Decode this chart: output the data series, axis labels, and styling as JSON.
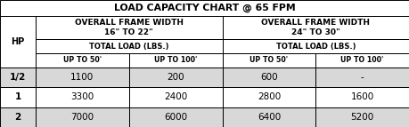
{
  "title": "LOAD CAPACITY CHART @ 65 FPM",
  "header1_left": "OVERALL FRAME WIDTH\n16\" TO 22\"",
  "header1_right": "OVERALL FRAME WIDTH\n24\" TO 30\"",
  "header2": "TOTAL LOAD (LBS.)",
  "header3_cols": [
    "HP",
    "UP TO 50'",
    "UP TO 100'",
    "UP TO 50'",
    "UP TO 100'"
  ],
  "rows": [
    [
      "1/2",
      "1100",
      "200",
      "600",
      "-"
    ],
    [
      "1",
      "3300",
      "2400",
      "2800",
      "1600"
    ],
    [
      "2",
      "7000",
      "6000",
      "6400",
      "5200"
    ]
  ],
  "border_color": "#000000",
  "bg_white": "#ffffff",
  "bg_gray": "#d8d8d8",
  "text_color": "#000000",
  "title_fontsize": 7.8,
  "header_fontsize": 6.5,
  "subheader_fontsize": 6.0,
  "data_fontsize": 7.5,
  "hp_fontsize": 7.0,
  "fig_width": 4.59,
  "fig_height": 1.43,
  "dpi": 100
}
